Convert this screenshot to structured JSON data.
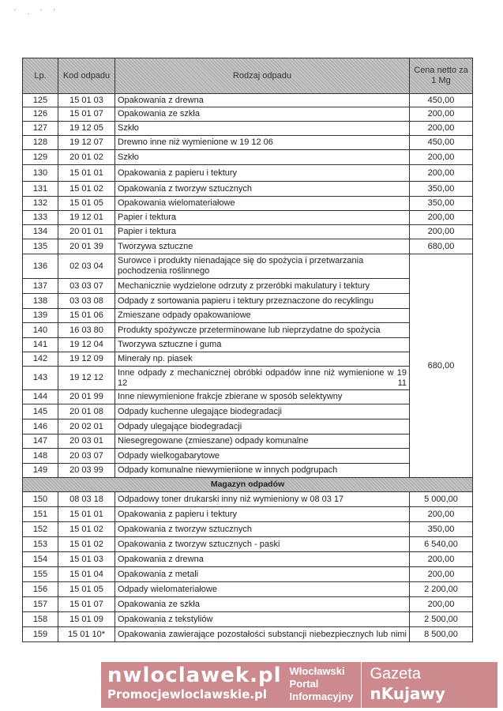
{
  "header": {
    "lp": "Lp.",
    "kod": "Kod odpadu",
    "rodzaj": "Rodzaj odpadu",
    "cena": "Cena netto za 1 Mg"
  },
  "rows_a": [
    {
      "lp": "125",
      "kod": "15 01 03",
      "rodzaj": "Opakowania z drewna",
      "cena": "450,00"
    },
    {
      "lp": "126",
      "kod": "15 01 07",
      "rodzaj": "Opakowania ze szkła",
      "cena": "200,00"
    },
    {
      "lp": "127",
      "kod": "19 12 05",
      "rodzaj": "Szkło",
      "cena": "200,00"
    },
    {
      "lp": "128",
      "kod": "19 12 07",
      "rodzaj": "Drewno inne niż wymienione w 19 12 06",
      "cena": "450,00"
    },
    {
      "lp": "129",
      "kod": "20 01 02",
      "rodzaj": "Szkło",
      "cena": "200,00"
    },
    {
      "lp": "130",
      "kod": "15 01 01",
      "rodzaj": "Opakowania z papieru i tektury",
      "cena": "200,00"
    },
    {
      "lp": "131",
      "kod": "15 01 02",
      "rodzaj": "Opakowania z tworzyw sztucznych",
      "cena": "350,00"
    },
    {
      "lp": "132",
      "kod": "15 01 05",
      "rodzaj": "Opakowania wielomateriałowe",
      "cena": "350,00"
    },
    {
      "lp": "133",
      "kod": "19 12 01",
      "rodzaj": "Papier i tektura",
      "cena": "200,00"
    },
    {
      "lp": "134",
      "kod": "20 01 01",
      "rodzaj": "Papier i tektura",
      "cena": "200,00"
    },
    {
      "lp": "135",
      "kod": "20 01 39",
      "rodzaj": "Tworzywa sztuczne",
      "cena": "680,00"
    }
  ],
  "merged_price": "680,00",
  "rows_b": [
    {
      "lp": "136",
      "kod": "02 03 04",
      "rodzaj": "Surowce i produkty nienadające się do spożycia i przetwarzania pochodzenia roślinnego"
    },
    {
      "lp": "137",
      "kod": "03 03 07",
      "rodzaj": "Mechanicznie wydzielone odrzuty z przeróbki makulatury i tektury"
    },
    {
      "lp": "138",
      "kod": "03 03 08",
      "rodzaj": "Odpady z sortowania papieru i tektury przeznaczone do recyklingu"
    },
    {
      "lp": "139",
      "kod": "15 01 06",
      "rodzaj": "Zmieszane odpady opakowaniowe"
    },
    {
      "lp": "140",
      "kod": "16 03 80",
      "rodzaj": "Produkty spożywcze przeterminowane lub nieprzydatne do spożycia"
    },
    {
      "lp": "141",
      "kod": "19 12 04",
      "rodzaj": "Tworzywa sztuczne i guma"
    },
    {
      "lp": "142",
      "kod": "19 12 09",
      "rodzaj": "Minerały np. piasek"
    },
    {
      "lp": "143",
      "kod": "19 12 12",
      "rodzaj": "Inne odpady z mechanicznej obróbki odpadów inne niż wymienione w 19 12 11"
    },
    {
      "lp": "144",
      "kod": "20 01 99",
      "rodzaj": "Inne niewymienione frakcje zbierane w sposób selektywny"
    },
    {
      "lp": "145",
      "kod": "20 01 08",
      "rodzaj": "Odpady kuchenne ulegające biodegradacji"
    },
    {
      "lp": "146",
      "kod": "20 02 01",
      "rodzaj": "Odpady ulegające biodegradacji"
    },
    {
      "lp": "147",
      "kod": "20 03 01",
      "rodzaj": "Niesegregowane (zmieszane) odpady komunalne"
    },
    {
      "lp": "148",
      "kod": "20 03 07",
      "rodzaj": "Odpady wielkogabarytowe"
    },
    {
      "lp": "149",
      "kod": "20 03 99",
      "rodzaj": "Odpady komunalne niewymienione w innych podgrupach"
    }
  ],
  "section": "Magazyn odpadów",
  "rows_c": [
    {
      "lp": "150",
      "kod": "08 03 18",
      "rodzaj": "Odpadowy toner drukarski inny niż wymieniony w 08 03 17",
      "cena": "5 000,00"
    },
    {
      "lp": "151",
      "kod": "15 01 01",
      "rodzaj": "Opakowania z papieru i tektury",
      "cena": "200,00"
    },
    {
      "lp": "152",
      "kod": "15 01 02",
      "rodzaj": "Opakowania z tworzyw sztucznych",
      "cena": "350,00"
    },
    {
      "lp": "153",
      "kod": "15 01 02",
      "rodzaj": "Opakowania z tworzyw sztucznych - paski",
      "cena": "6 540,00"
    },
    {
      "lp": "154",
      "kod": "15 01 03",
      "rodzaj": "Opakowania z drewna",
      "cena": "200,00"
    },
    {
      "lp": "155",
      "kod": "15 01 04",
      "rodzaj": "Opakowania z metali",
      "cena": "200,00"
    },
    {
      "lp": "156",
      "kod": "15 01 05",
      "rodzaj": "Odpady wielomateriałowe",
      "cena": "2 200,00"
    },
    {
      "lp": "157",
      "kod": "15 01 07",
      "rodzaj": "Opakowania ze szkła",
      "cena": "200,00"
    },
    {
      "lp": "158",
      "kod": "15 01 09",
      "rodzaj": "Opakowania z tekstyliów",
      "cena": "2 500,00"
    },
    {
      "lp": "159",
      "kod": "15 01 10*",
      "rodzaj": "Opakowania zawierające pozostałości substancji niebezpiecznych lub nimi",
      "cena": "8 500,00"
    }
  ],
  "watermark": {
    "site": "nwloclawek.pl",
    "site2": "Promocjewloclawskie.pl",
    "portal": [
      "Włocławski",
      "Portal",
      "Informacyjny"
    ],
    "gazeta": "Gazeta",
    "kujawy": "nKujawy"
  }
}
